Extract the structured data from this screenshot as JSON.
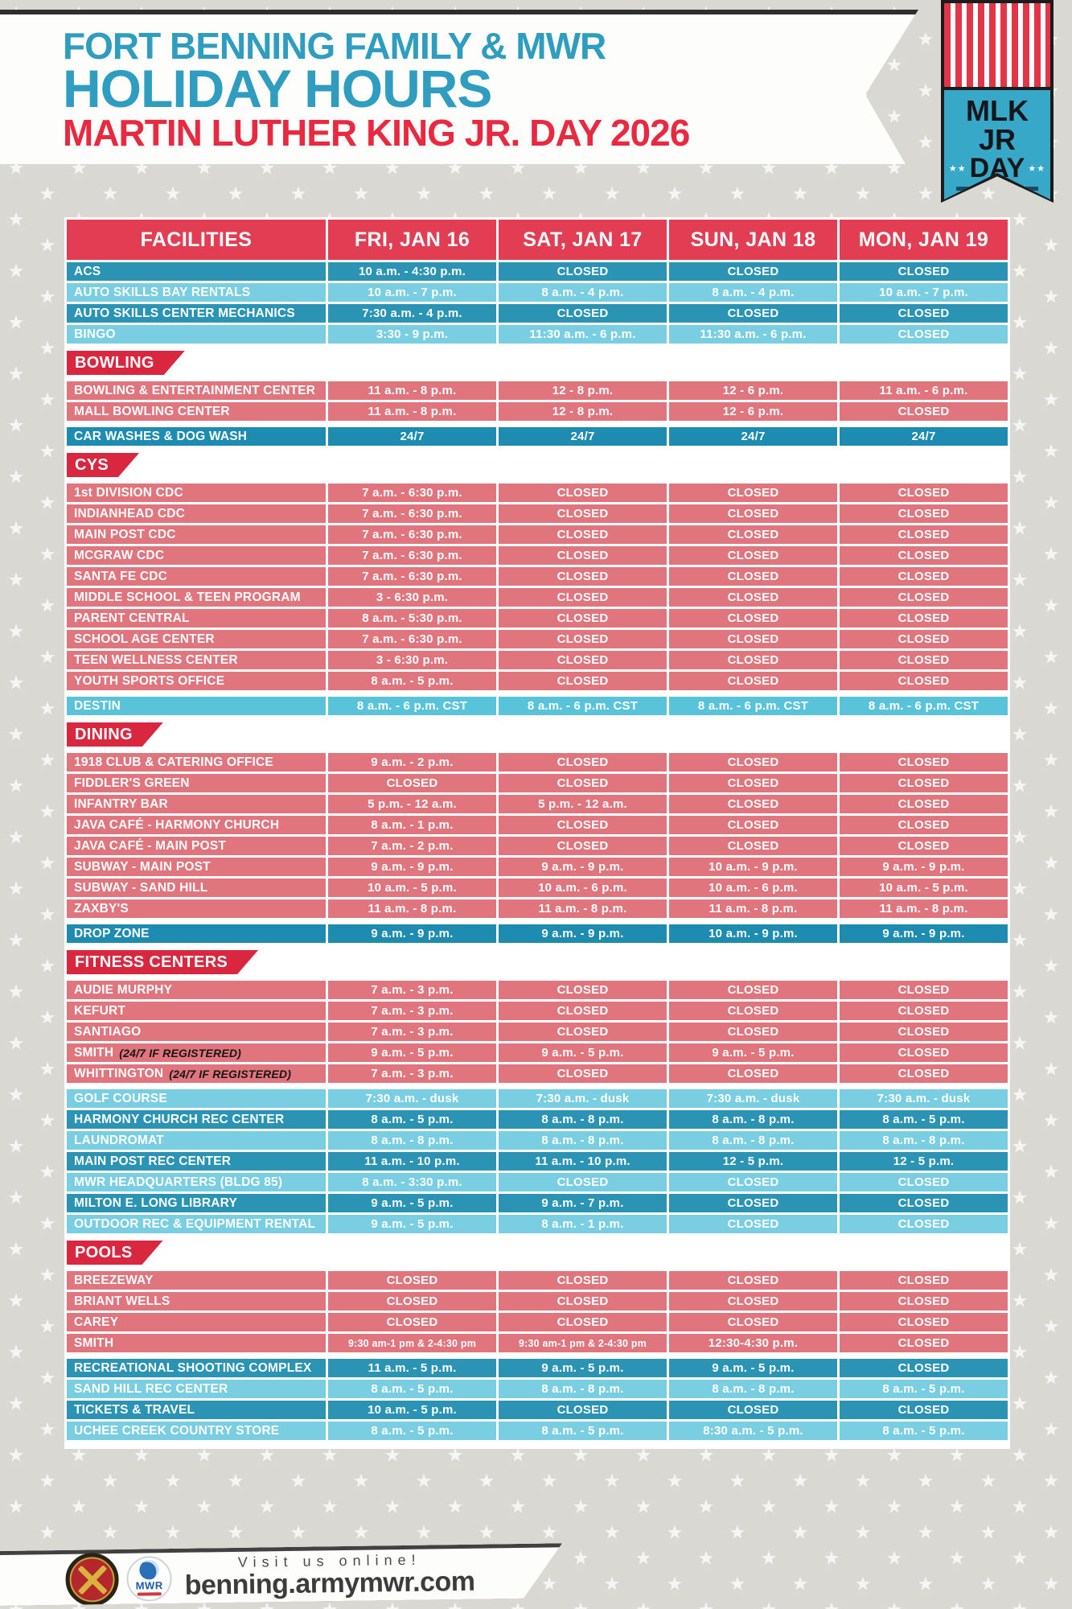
{
  "header": {
    "line1": "FORT BENNING FAMILY & MWR",
    "line2": "HOLIDAY HOURS",
    "line3": "MARTIN LUTHER KING JR. DAY 2026"
  },
  "badge": {
    "line1": "MLK JR",
    "line2": "DAY",
    "side_stars": "★★",
    "bottom_star": "★"
  },
  "colors": {
    "page_bg": "#d9d8d3",
    "title_blue": "#2f9dbf",
    "title_red": "#e8293f",
    "header_red": "#e23d52",
    "flag_red": "#da2740",
    "row_salmon": "#e0757d",
    "row_teal_dark": "#2b93b4",
    "row_blue_light": "#79cee1",
    "row_teal_solid": "#1d8cb0",
    "row_light_solid": "#59c3da",
    "badge_teal": "#38a8c8",
    "badge_stripe_red": "#e23548"
  },
  "table": {
    "columns": [
      "FACILITIES",
      "FRI, JAN 16",
      "SAT, JAN 17",
      "SUN, JAN 18",
      "MON, JAN 19"
    ],
    "groups": [
      {
        "style": "blue-alt",
        "start": "dark",
        "rows": [
          {
            "name": "ACS",
            "hours": [
              "10 a.m. - 4:30 p.m.",
              "CLOSED",
              "CLOSED",
              "CLOSED"
            ]
          },
          {
            "name": "AUTO SKILLS BAY RENTALS",
            "hours": [
              "10 a.m. - 7 p.m.",
              "8 a.m. - 4 p.m.",
              "8 a.m. - 4 p.m.",
              "10 a.m. - 7 p.m."
            ]
          },
          {
            "name": "AUTO SKILLS CENTER MECHANICS",
            "hours": [
              "7:30 a.m. - 4 p.m.",
              "CLOSED",
              "CLOSED",
              "CLOSED"
            ]
          },
          {
            "name": "BINGO",
            "hours": [
              "3:30 - 9 p.m.",
              "11:30 a.m. - 6 p.m.",
              "11:30 a.m. - 6 p.m.",
              "CLOSED"
            ]
          }
        ]
      },
      {
        "flag": "BOWLING"
      },
      {
        "style": "salmon",
        "rows": [
          {
            "name": "BOWLING & ENTERTAINMENT CENTER",
            "hours": [
              "11 a.m. - 8 p.m.",
              "12 - 8 p.m.",
              "12 - 6 p.m.",
              "11 a.m. - 6 p.m."
            ]
          },
          {
            "name": "MALL BOWLING CENTER",
            "hours": [
              "11 a.m. - 8 p.m.",
              "12 - 8 p.m.",
              "12 - 6 p.m.",
              "CLOSED"
            ]
          }
        ]
      },
      {
        "style": "teal-solid",
        "standalone": true,
        "rows": [
          {
            "name": "CAR WASHES & DOG WASH",
            "hours": [
              "24/7",
              "24/7",
              "24/7",
              "24/7"
            ]
          }
        ]
      },
      {
        "flag": "CYS"
      },
      {
        "style": "salmon",
        "rows": [
          {
            "name": "1st DIVISION CDC",
            "hours": [
              "7 a.m. - 6:30 p.m.",
              "CLOSED",
              "CLOSED",
              "CLOSED"
            ]
          },
          {
            "name": "INDIANHEAD CDC",
            "hours": [
              "7 a.m. - 6:30 p.m.",
              "CLOSED",
              "CLOSED",
              "CLOSED"
            ]
          },
          {
            "name": "MAIN POST CDC",
            "hours": [
              "7 a.m. - 6:30 p.m.",
              "CLOSED",
              "CLOSED",
              "CLOSED"
            ]
          },
          {
            "name": "MCGRAW CDC",
            "hours": [
              "7 a.m. - 6:30 p.m.",
              "CLOSED",
              "CLOSED",
              "CLOSED"
            ]
          },
          {
            "name": "SANTA FE CDC",
            "hours": [
              "7 a.m. - 6:30 p.m.",
              "CLOSED",
              "CLOSED",
              "CLOSED"
            ]
          },
          {
            "name": "MIDDLE SCHOOL & TEEN PROGRAM",
            "hours": [
              "3 - 6:30 p.m.",
              "CLOSED",
              "CLOSED",
              "CLOSED"
            ]
          },
          {
            "name": "PARENT CENTRAL",
            "hours": [
              "8 a.m. - 5:30 p.m.",
              "CLOSED",
              "CLOSED",
              "CLOSED"
            ]
          },
          {
            "name": "SCHOOL AGE CENTER",
            "hours": [
              "7 a.m. - 6:30 p.m.",
              "CLOSED",
              "CLOSED",
              "CLOSED"
            ]
          },
          {
            "name": "TEEN WELLNESS CENTER",
            "hours": [
              "3 - 6:30 p.m.",
              "CLOSED",
              "CLOSED",
              "CLOSED"
            ]
          },
          {
            "name": "YOUTH SPORTS OFFICE",
            "hours": [
              "8 a.m. - 5 p.m.",
              "CLOSED",
              "CLOSED",
              "CLOSED"
            ]
          }
        ]
      },
      {
        "style": "light-solid",
        "standalone": true,
        "rows": [
          {
            "name": "DESTIN",
            "hours": [
              "8 a.m. - 6 p.m. CST",
              "8 a.m. - 6 p.m. CST",
              "8 a.m. - 6 p.m. CST",
              "8 a.m. - 6 p.m. CST"
            ]
          }
        ]
      },
      {
        "flag": "DINING"
      },
      {
        "style": "salmon",
        "rows": [
          {
            "name": "1918 CLUB & CATERING OFFICE",
            "hours": [
              "9 a.m. - 2 p.m.",
              "CLOSED",
              "CLOSED",
              "CLOSED"
            ]
          },
          {
            "name": "FIDDLER'S GREEN",
            "hours": [
              "CLOSED",
              "CLOSED",
              "CLOSED",
              "CLOSED"
            ]
          },
          {
            "name": "INFANTRY BAR",
            "hours": [
              "5 p.m. - 12 a.m.",
              "5 p.m. - 12 a.m.",
              "CLOSED",
              "CLOSED"
            ]
          },
          {
            "name": "JAVA CAFÉ - HARMONY CHURCH",
            "hours": [
              "8 a.m. - 1 p.m.",
              "CLOSED",
              "CLOSED",
              "CLOSED"
            ]
          },
          {
            "name": "JAVA CAFÉ - MAIN POST",
            "hours": [
              "7 a.m. - 2 p.m.",
              "CLOSED",
              "CLOSED",
              "CLOSED"
            ]
          },
          {
            "name": "SUBWAY - MAIN POST",
            "hours": [
              "9 a.m. - 9 p.m.",
              "9 a.m. - 9 p.m.",
              "10 a.m. - 9 p.m.",
              "9 a.m. - 9 p.m."
            ]
          },
          {
            "name": "SUBWAY - SAND HILL",
            "hours": [
              "10 a.m. - 5 p.m.",
              "10 a.m. - 6 p.m.",
              "10 a.m. - 6 p.m.",
              "10 a.m. - 5 p.m."
            ]
          },
          {
            "name": "ZAXBY'S",
            "hours": [
              "11 a.m. - 8 p.m.",
              "11 a.m. - 8 p.m.",
              "11 a.m. - 8 p.m.",
              "11 a.m. - 8 p.m."
            ]
          }
        ]
      },
      {
        "style": "teal-solid",
        "standalone": true,
        "rows": [
          {
            "name": "DROP ZONE",
            "hours": [
              "9 a.m. - 9 p.m.",
              "9 a.m. - 9 p.m.",
              "10 a.m. - 9 p.m.",
              "9 a.m. - 9 p.m."
            ]
          }
        ]
      },
      {
        "flag": "FITNESS CENTERS"
      },
      {
        "style": "salmon",
        "rows": [
          {
            "name": "AUDIE MURPHY",
            "hours": [
              "7 a.m. - 3 p.m.",
              "CLOSED",
              "CLOSED",
              "CLOSED"
            ]
          },
          {
            "name": "KEFURT",
            "hours": [
              "7 a.m. - 3 p.m.",
              "CLOSED",
              "CLOSED",
              "CLOSED"
            ]
          },
          {
            "name": "SANTIAGO",
            "hours": [
              "7 a.m. - 3 p.m.",
              "CLOSED",
              "CLOSED",
              "CLOSED"
            ]
          },
          {
            "name": "SMITH",
            "suffix": "(24/7 IF REGISTERED)",
            "hours": [
              "9 a.m. - 5 p.m.",
              "9 a.m. - 5 p.m.",
              "9 a.m. - 5 p.m.",
              "CLOSED"
            ]
          },
          {
            "name": "WHITTINGTON",
            "suffix": "(24/7 IF REGISTERED)",
            "hours": [
              "7 a.m. - 3 p.m.",
              "CLOSED",
              "CLOSED",
              "CLOSED"
            ]
          }
        ]
      },
      {
        "style": "blue-alt",
        "start": "light",
        "standalone": true,
        "rows": [
          {
            "name": "GOLF COURSE",
            "hours": [
              "7:30 a.m. - dusk",
              "7:30 a.m. - dusk",
              "7:30 a.m. - dusk",
              "7:30 a.m. - dusk"
            ]
          },
          {
            "name": "HARMONY CHURCH REC CENTER",
            "hours": [
              "8 a.m. - 5 p.m.",
              "8 a.m. - 8 p.m.",
              "8 a.m. - 8 p.m.",
              "8 a.m. - 5 p.m."
            ]
          },
          {
            "name": "LAUNDROMAT",
            "hours": [
              "8 a.m. - 8 p.m.",
              "8 a.m. - 8 p.m.",
              "8 a.m. - 8 p.m.",
              "8 a.m. - 8 p.m."
            ]
          },
          {
            "name": "MAIN POST REC CENTER",
            "hours": [
              "11 a.m. - 10 p.m.",
              "11 a.m. - 10 p.m.",
              "12 - 5 p.m.",
              "12 - 5 p.m."
            ]
          },
          {
            "name": "MWR HEADQUARTERS (BLDG 85)",
            "hours": [
              "8 a.m. - 3:30 p.m.",
              "CLOSED",
              "CLOSED",
              "CLOSED"
            ]
          },
          {
            "name": "MILTON E. LONG LIBRARY",
            "hours": [
              "9 a.m. - 5 p.m.",
              "9 a.m. - 7 p.m.",
              "CLOSED",
              "CLOSED"
            ]
          },
          {
            "name": "OUTDOOR REC & EQUIPMENT RENTAL",
            "hours": [
              "9 a.m. - 5 p.m.",
              "8 a.m. - 1 p.m.",
              "CLOSED",
              "CLOSED"
            ]
          }
        ]
      },
      {
        "flag": "POOLS"
      },
      {
        "style": "salmon",
        "rows": [
          {
            "name": "BREEZEWAY",
            "hours": [
              "CLOSED",
              "CLOSED",
              "CLOSED",
              "CLOSED"
            ]
          },
          {
            "name": "BRIANT WELLS",
            "hours": [
              "CLOSED",
              "CLOSED",
              "CLOSED",
              "CLOSED"
            ]
          },
          {
            "name": "CAREY",
            "hours": [
              "CLOSED",
              "CLOSED",
              "CLOSED",
              "CLOSED"
            ]
          },
          {
            "name": "SMITH",
            "hours": [
              "9:30 am-1 pm & 2-4:30 pm",
              "9:30 am-1 pm & 2-4:30 pm",
              "12:30-4:30 p.m.",
              "CLOSED"
            ]
          }
        ]
      },
      {
        "style": "blue-alt",
        "start": "dark",
        "standalone": true,
        "rows": [
          {
            "name": "RECREATIONAL SHOOTING COMPLEX",
            "hours": [
              "11 a.m. - 5 p.m.",
              "9 a.m. - 5 p.m.",
              "9 a.m. - 5 p.m.",
              "CLOSED"
            ]
          },
          {
            "name": "SAND HILL REC CENTER",
            "hours": [
              "8 a.m. - 5 p.m.",
              "8 a.m. - 8 p.m.",
              "8 a.m. - 8 p.m.",
              "8 a.m. - 5 p.m."
            ]
          },
          {
            "name": "TICKETS & TRAVEL",
            "hours": [
              "10 a.m. - 5 p.m.",
              "CLOSED",
              "CLOSED",
              "CLOSED"
            ]
          },
          {
            "name": "UCHEE CREEK COUNTRY STORE",
            "hours": [
              "8 a.m. - 5 p.m.",
              "8 a.m. - 5 p.m.",
              "8:30 a.m. - 5 p.m.",
              "8 a.m. - 5 p.m."
            ]
          }
        ]
      }
    ]
  },
  "footer": {
    "tagline": "Visit us online!",
    "url": "benning.armymwr.com",
    "mwr_logo_text": "MWR"
  }
}
